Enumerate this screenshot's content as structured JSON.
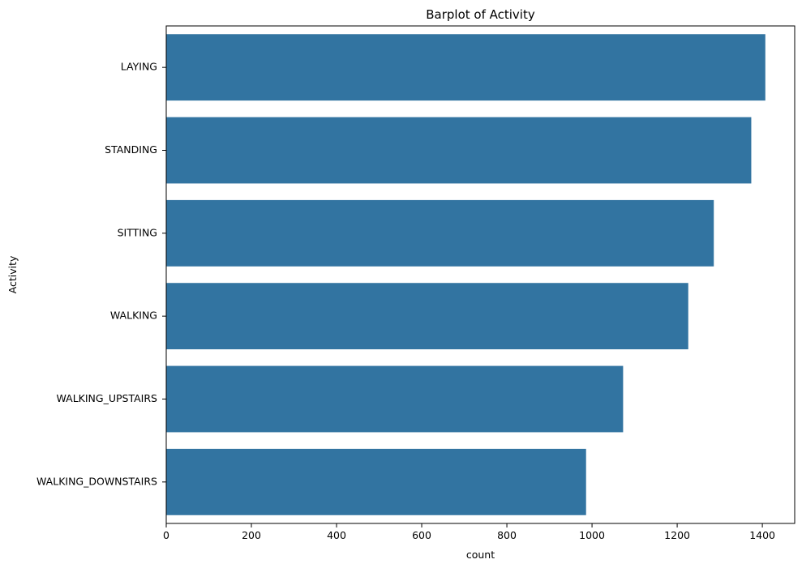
{
  "chart_data": {
    "type": "bar",
    "orientation": "horizontal",
    "title": "Barplot of Activity",
    "xlabel": "count",
    "ylabel": "Activity",
    "categories": [
      "LAYING",
      "STANDING",
      "SITTING",
      "WALKING",
      "WALKING_UPSTAIRS",
      "WALKING_DOWNSTAIRS"
    ],
    "values": [
      1407,
      1374,
      1286,
      1226,
      1073,
      986
    ],
    "xlim": [
      0,
      1476
    ],
    "xticks": [
      0,
      200,
      400,
      600,
      800,
      1000,
      1200,
      1400
    ],
    "grid": false,
    "bar_color": "#3274a1"
  }
}
